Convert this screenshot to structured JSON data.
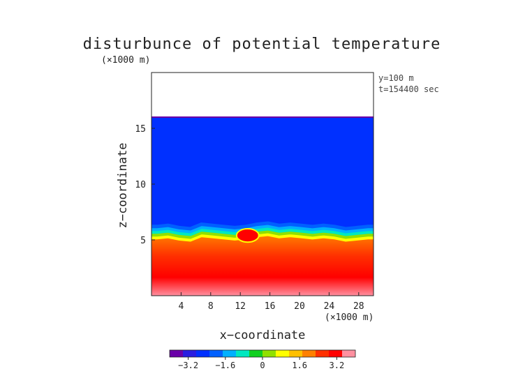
{
  "chart_data": {
    "type": "heatmap",
    "title": "disturbunce of potential temperature",
    "yunit": "(×1000 m)",
    "xunit": "(×1000 m)",
    "xlabel": "x−coordinate",
    "ylabel": "z−coordinate",
    "annotations": [
      "y=100 m",
      "t=154400 sec"
    ],
    "xlim": [
      0,
      30
    ],
    "ylim": [
      0,
      20
    ],
    "xticks": [
      {
        "value": 4,
        "label": "4"
      },
      {
        "value": 8,
        "label": "8"
      },
      {
        "value": 12,
        "label": "12"
      },
      {
        "value": 16,
        "label": "16"
      },
      {
        "value": 20,
        "label": "20"
      },
      {
        "value": 24,
        "label": "24"
      },
      {
        "value": 28,
        "label": "28"
      }
    ],
    "yticks": [
      {
        "value": 5,
        "label": "5"
      },
      {
        "value": 10,
        "label": "10"
      },
      {
        "value": 15,
        "label": "15"
      }
    ],
    "colorbar": {
      "range": [
        -4,
        4
      ],
      "ticks": [
        {
          "value": -3.2,
          "label": "−3.2"
        },
        {
          "value": -1.6,
          "label": "−1.6"
        },
        {
          "value": 0,
          "label": "0"
        },
        {
          "value": 1.6,
          "label": "1.6"
        },
        {
          "value": 3.2,
          "label": "3.2"
        }
      ],
      "colors": [
        "#6a00a8",
        "#2a1ee0",
        "#0030ff",
        "#0060ff",
        "#00b0ff",
        "#00e8c0",
        "#10d020",
        "#90e000",
        "#ffff00",
        "#ffc000",
        "#ff8000",
        "#ff3000",
        "#ff0000",
        "#ff90a0"
      ]
    },
    "field": {
      "top_height": 16.0,
      "upper_value": -2.4,
      "interface_heights": [
        5.2,
        5.3,
        5.1,
        5.0,
        5.4,
        5.3,
        5.2,
        5.1,
        5.2,
        5.4,
        5.5,
        5.3,
        5.4,
        5.3,
        5.2,
        5.3,
        5.2,
        5.0,
        5.1,
        5.2
      ],
      "lower_value_top": 1.7,
      "lower_value_bottom": 3.5,
      "warm_anomaly": {
        "x_range": [
          11.5,
          14.5
        ],
        "z_range": [
          4.8,
          6.0
        ],
        "value": 3.4
      }
    }
  }
}
